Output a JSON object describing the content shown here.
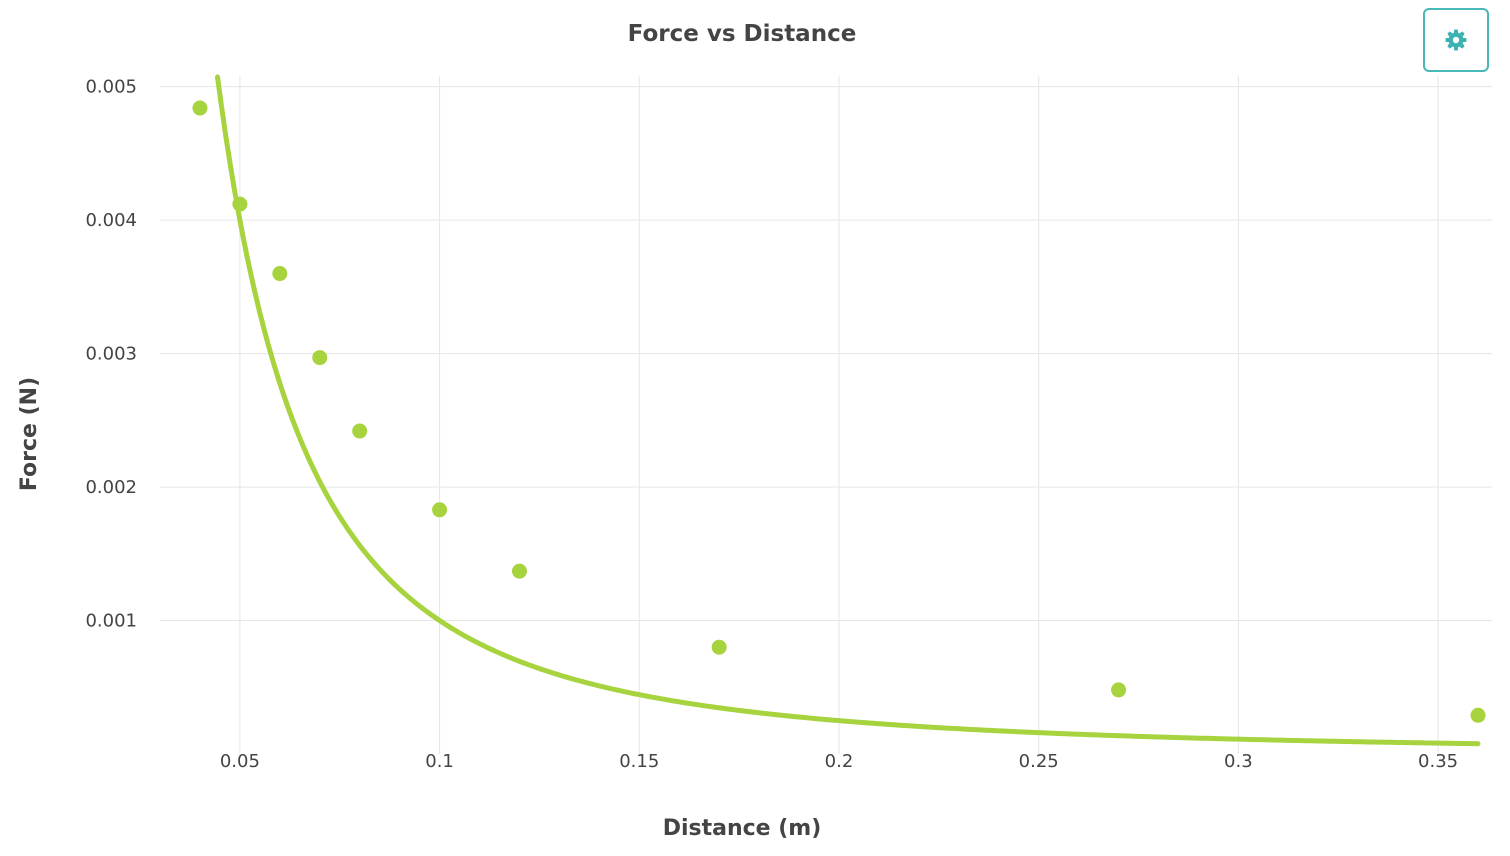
{
  "settings_button": {
    "icon": "gear-icon",
    "color": "#3bb3b3"
  },
  "chart_data": {
    "type": "scatter",
    "title": "Force vs Distance",
    "xlabel": "Distance (m)",
    "ylabel": "Force (N)",
    "xlim": [
      0.03,
      0.3635
    ],
    "ylim": [
      0.0,
      0.00508
    ],
    "x_ticks": [
      0.05,
      0.1,
      0.15,
      0.2,
      0.25,
      0.3,
      0.35
    ],
    "x_tick_labels": [
      "0.05",
      "0.1",
      "0.15",
      "0.2",
      "0.25",
      "0.3",
      "0.35"
    ],
    "y_ticks": [
      0.001,
      0.002,
      0.003,
      0.004,
      0.005
    ],
    "y_tick_labels": [
      "0.001",
      "0.002",
      "0.003",
      "0.004",
      "0.005"
    ],
    "grid": true,
    "legend": "none",
    "color": "#a6d33e",
    "series": [
      {
        "type": "scatter",
        "x": [
          0.04,
          0.05,
          0.06,
          0.07,
          0.08,
          0.1,
          0.12,
          0.17,
          0.27,
          0.36
        ],
        "y": [
          0.00484,
          0.00412,
          0.0036,
          0.00297,
          0.00242,
          0.00183,
          0.00137,
          0.0008,
          0.00048,
          0.00029
        ]
      },
      {
        "type": "line",
        "equation": "y = 0.00001 / x^2",
        "coefficient": 1e-05,
        "exponent": -2,
        "x_range": [
          0.0444,
          0.36
        ]
      }
    ]
  }
}
